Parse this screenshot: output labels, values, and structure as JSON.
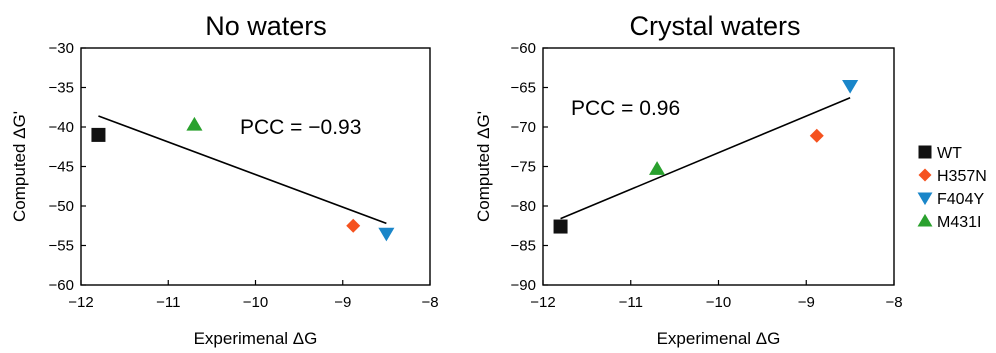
{
  "chart_data": [
    {
      "type": "scatter",
      "title": "No waters",
      "xlabel": "Experimenal ΔG",
      "ylabel": "Computed ΔG'",
      "xlim": [
        -12,
        -8
      ],
      "ylim": [
        -60,
        -30
      ],
      "x_ticks": [
        "−12",
        "−11",
        "−10",
        "−9",
        "−8"
      ],
      "y_ticks": [
        "−30",
        "−35",
        "−40",
        "−45",
        "−50",
        "−55",
        "−60"
      ],
      "annotation": "PCC = −0.93",
      "series": [
        {
          "name": "WT",
          "x": -11.8,
          "y": -41.0
        },
        {
          "name": "H357N",
          "x": -8.88,
          "y": -52.5
        },
        {
          "name": "F404Y",
          "x": -8.5,
          "y": -53.5
        },
        {
          "name": "M431I",
          "x": -10.7,
          "y": -39.7
        }
      ],
      "fit_line": {
        "x": [
          -11.8,
          -8.5
        ],
        "y": [
          -38.6,
          -52.2
        ]
      }
    },
    {
      "type": "scatter",
      "title": "Crystal waters",
      "xlabel": "Experimenal ΔG",
      "ylabel": "Computed ΔG'",
      "xlim": [
        -12,
        -8
      ],
      "ylim": [
        -90,
        -60
      ],
      "x_ticks": [
        "−12",
        "−11",
        "−10",
        "−9",
        "−8"
      ],
      "y_ticks": [
        "−60",
        "−65",
        "−70",
        "−75",
        "−80",
        "−85",
        "−90"
      ],
      "annotation": "PCC = 0.96",
      "series": [
        {
          "name": "WT",
          "x": -11.8,
          "y": -82.6
        },
        {
          "name": "H357N",
          "x": -8.88,
          "y": -71.1
        },
        {
          "name": "F404Y",
          "x": -8.5,
          "y": -64.8
        },
        {
          "name": "M431I",
          "x": -10.7,
          "y": -75.3
        }
      ],
      "fit_line": {
        "x": [
          -11.8,
          -8.5
        ],
        "y": [
          -81.6,
          -66.3
        ]
      }
    }
  ],
  "legend": [
    {
      "name": "WT",
      "marker": "square",
      "color": "#111111"
    },
    {
      "name": "H357N",
      "marker": "diamond",
      "color": "#f5521f"
    },
    {
      "name": "F404Y",
      "marker": "triangle-down",
      "color": "#1a86c9"
    },
    {
      "name": "M431I",
      "marker": "triangle-up",
      "color": "#2aa12e"
    }
  ]
}
